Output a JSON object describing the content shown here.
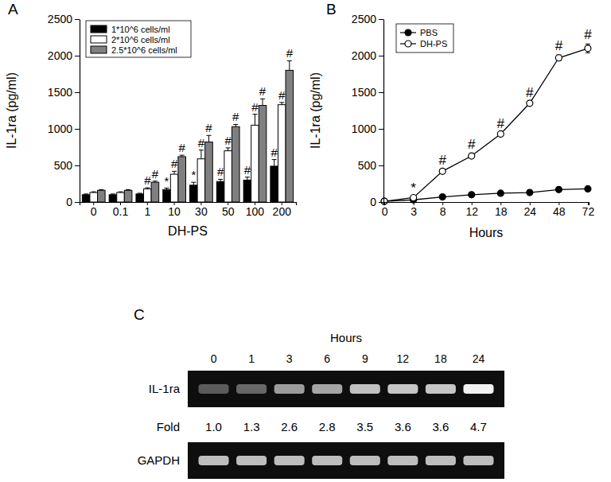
{
  "chart_data": [
    {
      "type": "bar",
      "title": "A",
      "x_label": "DH-PS",
      "y_label": "IL-1ra (pg/ml)",
      "categories": [
        "0",
        "0.1",
        "1",
        "10",
        "30",
        "50",
        "100",
        "200"
      ],
      "ylim": [
        0,
        2500
      ],
      "yticks": [
        0,
        500,
        1000,
        1500,
        2000,
        2500
      ],
      "legend": "upper left",
      "series": [
        {
          "name": "1*10^6 cells/ml",
          "color": "#000000",
          "values": [
            100,
            100,
            110,
            170,
            230,
            280,
            300,
            490
          ],
          "errors": [
            10,
            10,
            10,
            20,
            40,
            30,
            40,
            90
          ],
          "annotations": [
            null,
            null,
            null,
            "*",
            "*",
            "#",
            "#",
            "#"
          ]
        },
        {
          "name": "2*10^6 cells/ml",
          "color": "#ffffff",
          "values": [
            130,
            130,
            180,
            380,
            590,
            700,
            1050,
            1330
          ],
          "errors": [
            10,
            10,
            15,
            40,
            120,
            40,
            150,
            30
          ],
          "annotations": [
            null,
            null,
            "#",
            "#",
            "#",
            "#",
            "#",
            "#"
          ]
        },
        {
          "name": "2.5*10^6 cells/ml",
          "color": "#808080",
          "values": [
            160,
            160,
            270,
            620,
            820,
            1030,
            1320,
            1800
          ],
          "errors": [
            10,
            10,
            15,
            20,
            90,
            30,
            90,
            130
          ],
          "annotations": [
            null,
            null,
            "#",
            "#",
            "#",
            "#",
            "#",
            "#"
          ]
        }
      ]
    },
    {
      "type": "line",
      "title": "B",
      "x_label": "Hours",
      "y_label": "IL-1ra (pg/ml)",
      "categories": [
        "0",
        "3",
        "8",
        "12",
        "18",
        "24",
        "48",
        "72"
      ],
      "ylim": [
        0,
        2500
      ],
      "yticks": [
        0,
        500,
        1000,
        1500,
        2000,
        2500
      ],
      "legend": "upper left",
      "series": [
        {
          "name": "PBS",
          "color": "#000000",
          "marker": "circle",
          "values": [
            10,
            30,
            70,
            100,
            120,
            130,
            170,
            180
          ],
          "errors": [
            3,
            5,
            8,
            8,
            10,
            10,
            20,
            15
          ]
        },
        {
          "name": "DH-PS",
          "color": "#000000",
          "marker": "open-circle",
          "values": [
            10,
            60,
            420,
            630,
            930,
            1350,
            1970,
            2100
          ],
          "errors": [
            3,
            10,
            30,
            30,
            20,
            20,
            40,
            60
          ],
          "annotations": [
            null,
            "*",
            "#",
            "#",
            "#",
            "#",
            "#",
            "#"
          ]
        }
      ]
    },
    {
      "type": "blot",
      "title": "C",
      "x_label": "Hours",
      "categories": [
        "0",
        "1",
        "3",
        "6",
        "9",
        "12",
        "18",
        "24"
      ],
      "series": [
        {
          "name": "IL-1ra",
          "values": [
            1.0,
            1.3,
            2.6,
            2.8,
            3.5,
            3.6,
            3.6,
            4.7
          ],
          "value_labels": [
            "1.0",
            "1.3",
            "2.6",
            "2.8",
            "3.5",
            "3.6",
            "3.6",
            "4.7"
          ]
        }
      ],
      "row_label": "Fold",
      "control": "GAPDH"
    }
  ]
}
